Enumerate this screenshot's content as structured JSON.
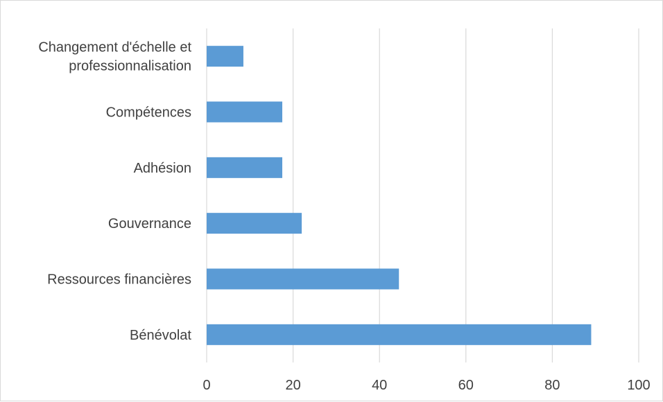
{
  "chart_data": {
    "type": "bar",
    "orientation": "horizontal",
    "categories": [
      "Changement d'échelle et professionnalisation",
      "Compétences",
      "Adhésion",
      "Gouvernance",
      "Ressources financières",
      "Bénévolat"
    ],
    "category_lines": [
      [
        "Changement d'échelle et",
        "professionnalisation"
      ],
      [
        "Compétences"
      ],
      [
        "Adhésion"
      ],
      [
        "Gouvernance"
      ],
      [
        "Ressources financières"
      ],
      [
        "Bénévolat"
      ]
    ],
    "values": [
      8.5,
      17.5,
      17.5,
      22,
      44.5,
      89
    ],
    "xlim": [
      0,
      100
    ],
    "xticks": [
      0,
      20,
      40,
      60,
      80,
      100
    ],
    "grid": true,
    "legend": "none",
    "title": "",
    "xlabel": "",
    "ylabel": "",
    "colors": {
      "bar": "#5b9bd5",
      "grid": "#d9d9d9",
      "text": "#404040"
    }
  }
}
